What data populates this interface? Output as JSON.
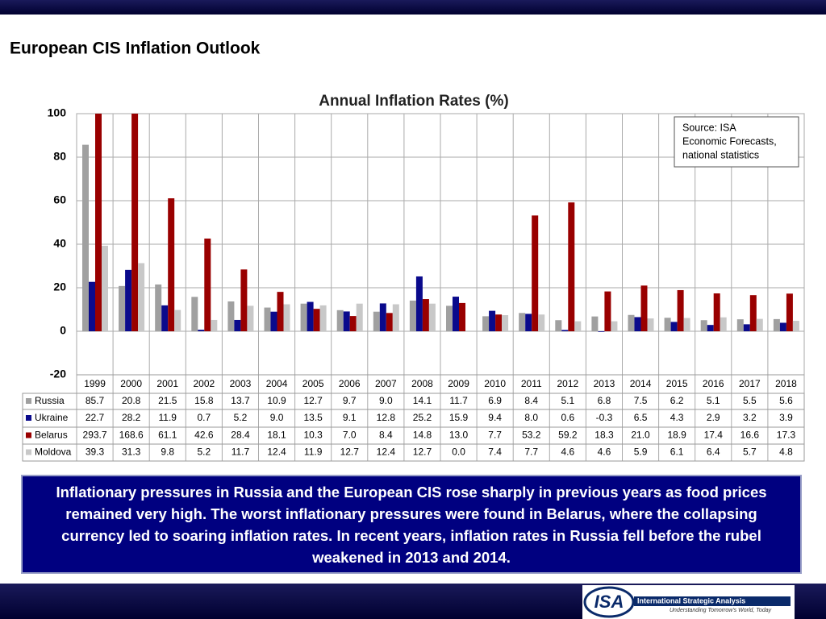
{
  "slide": {
    "title": "European CIS Inflation Outlook",
    "text": "Inflationary pressures in Russia and the European CIS rose sharply in previous years as food prices remained very high.  The worst inflationary pressures were found in Belarus, where the collapsing currency led to soaring inflation rates.  In recent years, inflation rates in Russia fell before the rubel weakened in 2013 and 2014.",
    "logo": {
      "mark": "ISA",
      "name": "International Strategic Analysis",
      "tagline": "Understanding Tomorrow's World, Today"
    }
  },
  "chart_data": {
    "type": "bar",
    "title": "Annual Inflation Rates (%)",
    "annotation": [
      "Source: ISA",
      "Economic Forecasts,",
      "national statistics"
    ],
    "categories": [
      "1999",
      "2000",
      "2001",
      "2002",
      "2003",
      "2004",
      "2005",
      "2006",
      "2007",
      "2008",
      "2009",
      "2010",
      "2011",
      "2012",
      "2013",
      "2014",
      "2015",
      "2016",
      "2017",
      "2018"
    ],
    "series": [
      {
        "name": "Russia",
        "color": "#a0a0a0",
        "values": [
          85.7,
          20.8,
          21.5,
          15.8,
          13.7,
          10.9,
          12.7,
          9.7,
          9.0,
          14.1,
          11.7,
          6.9,
          8.4,
          5.1,
          6.8,
          7.5,
          6.2,
          5.1,
          5.5,
          5.6
        ],
        "value_labels": [
          "85.7",
          "20.8",
          "21.5",
          "15.8",
          "13.7",
          "10.9",
          "12.7",
          "9.7",
          "9.0",
          "14.1",
          "11.7",
          "6.9",
          "8.4",
          "5.1",
          "6.8",
          "7.5",
          "6.2",
          "5.1",
          "5.5",
          "5.6"
        ]
      },
      {
        "name": "Ukraine",
        "color": "#0a0a8c",
        "values": [
          22.7,
          28.2,
          11.9,
          0.7,
          5.2,
          9.0,
          13.5,
          9.1,
          12.8,
          25.2,
          15.9,
          9.4,
          8.0,
          0.6,
          -0.3,
          6.5,
          4.3,
          2.9,
          3.2,
          3.9
        ],
        "value_labels": [
          "22.7",
          "28.2",
          "11.9",
          "0.7",
          "5.2",
          "9.0",
          "13.5",
          "9.1",
          "12.8",
          "25.2",
          "15.9",
          "9.4",
          "8.0",
          "0.6",
          "-0.3",
          "6.5",
          "4.3",
          "2.9",
          "3.2",
          "3.9"
        ]
      },
      {
        "name": "Belarus",
        "color": "#990000",
        "values": [
          293.7,
          168.6,
          61.1,
          42.6,
          28.4,
          18.1,
          10.3,
          7.0,
          8.4,
          14.8,
          13.0,
          7.7,
          53.2,
          59.2,
          18.3,
          21.0,
          18.9,
          17.4,
          16.6,
          17.3
        ],
        "value_labels": [
          "293.7",
          "168.6",
          "61.1",
          "42.6",
          "28.4",
          "18.1",
          "10.3",
          "7.0",
          "8.4",
          "14.8",
          "13.0",
          "7.7",
          "53.2",
          "59.2",
          "18.3",
          "21.0",
          "18.9",
          "17.4",
          "16.6",
          "17.3"
        ]
      },
      {
        "name": "Moldova",
        "color": "#c8c8c8",
        "values": [
          39.3,
          31.3,
          9.8,
          5.2,
          11.7,
          12.4,
          11.9,
          12.7,
          12.4,
          12.7,
          0.0,
          7.4,
          7.7,
          4.6,
          4.6,
          5.9,
          6.1,
          6.4,
          5.7,
          4.8
        ],
        "value_labels": [
          "39.3",
          "31.3",
          "9.8",
          "5.2",
          "11.7",
          "12.4",
          "11.9",
          "12.7",
          "12.4",
          "12.7",
          "0.0",
          "7.4",
          "7.7",
          "4.6",
          "4.6",
          "5.9",
          "6.1",
          "6.4",
          "5.7",
          "4.8"
        ]
      }
    ],
    "ylim": [
      -20,
      100
    ],
    "yticks": [
      -20,
      0,
      20,
      40,
      60,
      80,
      100
    ],
    "grid": true
  }
}
